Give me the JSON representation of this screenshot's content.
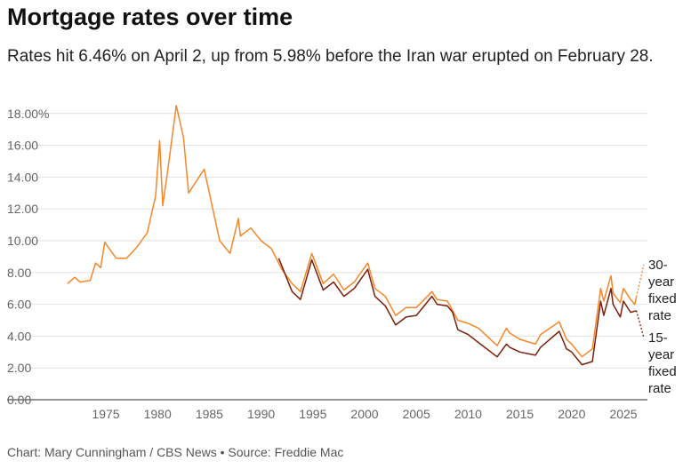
{
  "title": "Mortgage rates over time",
  "subtitle": "Rates hit 6.46% on April 2, up from 5.98% before the Iran war erupted on February 28.",
  "source": "Chart: Mary Cunningham / CBS News • Source: Freddie Mac",
  "chart_data": {
    "type": "line",
    "title": "Mortgage rates over time",
    "xlabel": "",
    "ylabel": "",
    "ylim": [
      0,
      18
    ],
    "xlim": [
      1971,
      2026.5
    ],
    "grid": "horizontal",
    "legend": "right (direct labels)",
    "y_ticks": [
      "0.00",
      "2.00",
      "4.00",
      "6.00",
      "8.00",
      "10.00",
      "12.00",
      "14.00",
      "16.00",
      "18.00%"
    ],
    "x_ticks": [
      "1975",
      "1980",
      "1985",
      "1990",
      "1995",
      "2000",
      "2005",
      "2010",
      "2015",
      "2020",
      "2025"
    ],
    "series": [
      {
        "name": "30-year fixed rate",
        "color": "#f5872a",
        "label_lines": [
          "30-",
          "year",
          "fixed",
          "rate"
        ],
        "x": [
          1971.3,
          1972,
          1972.5,
          1973.5,
          1974,
          1974.5,
          1974.9,
          1976,
          1977,
          1978,
          1979,
          1979.8,
          1980.2,
          1980.5,
          1981,
          1981.8,
          1982.5,
          1983,
          1984.5,
          1985,
          1986,
          1987,
          1987.8,
          1988,
          1989,
          1990,
          1991,
          1992,
          1993,
          1993.8,
          1994.9,
          1996,
          1997,
          1998,
          1999,
          2000.3,
          2001,
          2002,
          2003,
          2004,
          2005,
          2006.5,
          2007,
          2008,
          2009,
          2010,
          2011,
          2012.8,
          2013.7,
          2014,
          2015,
          2016.5,
          2017,
          2018.8,
          2019.5,
          2020,
          2021,
          2022,
          2022.8,
          2023.1,
          2023.8,
          2024,
          2024.7,
          2025,
          2025.7,
          2026.1,
          2026.25
        ],
        "values": [
          7.3,
          7.7,
          7.4,
          7.5,
          8.6,
          8.3,
          9.9,
          8.9,
          8.9,
          9.6,
          10.5,
          12.8,
          16.3,
          12.2,
          14.5,
          18.5,
          16.5,
          13.0,
          14.5,
          13.0,
          10.0,
          9.2,
          11.4,
          10.3,
          10.8,
          10.0,
          9.5,
          8.2,
          7.3,
          6.8,
          9.2,
          7.3,
          7.9,
          6.9,
          7.4,
          8.6,
          7.0,
          6.5,
          5.3,
          5.8,
          5.8,
          6.8,
          6.3,
          6.2,
          5.0,
          4.8,
          4.5,
          3.4,
          4.5,
          4.2,
          3.8,
          3.5,
          4.1,
          4.9,
          3.8,
          3.5,
          2.7,
          3.2,
          7.0,
          6.2,
          7.8,
          6.7,
          6.1,
          7.0,
          6.3,
          6.0,
          6.46
        ]
      },
      {
        "name": "15-year fixed rate",
        "color": "#7a1f0a",
        "label_lines": [
          "15-",
          "year",
          "fixed",
          "rate"
        ],
        "x": [
          1991.7,
          1993,
          1993.8,
          1994.9,
          1996,
          1997,
          1998,
          1999,
          2000.3,
          2001,
          2002,
          2003,
          2004,
          2005,
          2006.5,
          2007,
          2008,
          2008.5,
          2009,
          2010,
          2011,
          2012.8,
          2013.7,
          2014,
          2015,
          2016.5,
          2017,
          2018.8,
          2019.5,
          2020,
          2021,
          2022,
          2022.8,
          2023.1,
          2023.8,
          2024,
          2024.7,
          2025,
          2025.7,
          2026.25
        ],
        "values": [
          8.9,
          6.8,
          6.3,
          8.8,
          6.9,
          7.4,
          6.5,
          7.0,
          8.2,
          6.5,
          5.9,
          4.7,
          5.2,
          5.3,
          6.5,
          6.0,
          5.9,
          5.5,
          4.4,
          4.1,
          3.6,
          2.7,
          3.5,
          3.3,
          3.0,
          2.8,
          3.3,
          4.3,
          3.2,
          3.0,
          2.2,
          2.4,
          6.2,
          5.3,
          7.0,
          6.0,
          5.2,
          6.2,
          5.5,
          5.6
        ]
      }
    ]
  }
}
